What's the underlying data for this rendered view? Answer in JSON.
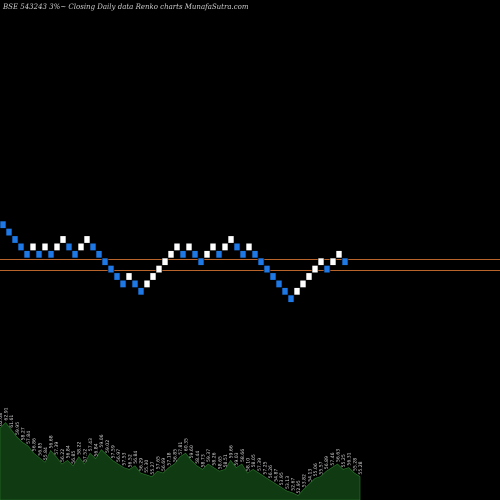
{
  "title": "BSE 543243 3%~ Closing Daily data Renko charts MunafaSutra.com",
  "colors": {
    "background": "#000000",
    "up_brick": "#ffffff",
    "down_brick": "#1e78e6",
    "brick_border": "#0a2a55",
    "reference_line": "#b8642a",
    "volume_area": "#0f3a12",
    "volume_edge": "#2c7a2c",
    "label": "#d8d8d8"
  },
  "chart_data": [
    {
      "type": "renko",
      "title": "BSE 543243 3%~ Closing Daily data Renko charts MunafaSutra.com",
      "brick_size_pct": 3,
      "price_range": [
        40,
        60
      ],
      "reference_lines": [
        52.0,
        50.7
      ],
      "bricks": [
        {
          "level": 62.0,
          "dir": "down"
        },
        {
          "level": 61.0,
          "dir": "down"
        },
        {
          "level": 60.0,
          "dir": "down"
        },
        {
          "level": 59.0,
          "dir": "down"
        },
        {
          "level": 58.0,
          "dir": "down"
        },
        {
          "level": 59.0,
          "dir": "up"
        },
        {
          "level": 58.0,
          "dir": "down"
        },
        {
          "level": 59.0,
          "dir": "up"
        },
        {
          "level": 58.0,
          "dir": "down"
        },
        {
          "level": 59.0,
          "dir": "up"
        },
        {
          "level": 60.0,
          "dir": "up"
        },
        {
          "level": 59.0,
          "dir": "down"
        },
        {
          "level": 58.0,
          "dir": "down"
        },
        {
          "level": 59.0,
          "dir": "up"
        },
        {
          "level": 60.0,
          "dir": "up"
        },
        {
          "level": 59.0,
          "dir": "down"
        },
        {
          "level": 58.0,
          "dir": "down"
        },
        {
          "level": 57.0,
          "dir": "down"
        },
        {
          "level": 56.0,
          "dir": "down"
        },
        {
          "level": 55.0,
          "dir": "down"
        },
        {
          "level": 54.0,
          "dir": "down"
        },
        {
          "level": 55.0,
          "dir": "up"
        },
        {
          "level": 54.0,
          "dir": "down"
        },
        {
          "level": 53.0,
          "dir": "down"
        },
        {
          "level": 54.0,
          "dir": "up"
        },
        {
          "level": 55.0,
          "dir": "up"
        },
        {
          "level": 56.0,
          "dir": "up"
        },
        {
          "level": 57.0,
          "dir": "up"
        },
        {
          "level": 58.0,
          "dir": "up"
        },
        {
          "level": 59.0,
          "dir": "up"
        },
        {
          "level": 58.0,
          "dir": "down"
        },
        {
          "level": 59.0,
          "dir": "up"
        },
        {
          "level": 58.0,
          "dir": "down"
        },
        {
          "level": 57.0,
          "dir": "down"
        },
        {
          "level": 58.0,
          "dir": "up"
        },
        {
          "level": 59.0,
          "dir": "up"
        },
        {
          "level": 58.0,
          "dir": "down"
        },
        {
          "level": 59.0,
          "dir": "up"
        },
        {
          "level": 60.0,
          "dir": "up"
        },
        {
          "level": 59.0,
          "dir": "down"
        },
        {
          "level": 58.0,
          "dir": "down"
        },
        {
          "level": 59.0,
          "dir": "up"
        },
        {
          "level": 58.0,
          "dir": "down"
        },
        {
          "level": 57.0,
          "dir": "down"
        },
        {
          "level": 56.0,
          "dir": "down"
        },
        {
          "level": 55.0,
          "dir": "down"
        },
        {
          "level": 54.0,
          "dir": "down"
        },
        {
          "level": 53.0,
          "dir": "down"
        },
        {
          "level": 52.0,
          "dir": "down"
        },
        {
          "level": 53.0,
          "dir": "up"
        },
        {
          "level": 54.0,
          "dir": "up"
        },
        {
          "level": 55.0,
          "dir": "up"
        },
        {
          "level": 56.0,
          "dir": "up"
        },
        {
          "level": 57.0,
          "dir": "up"
        },
        {
          "level": 56.0,
          "dir": "down"
        },
        {
          "level": 57.0,
          "dir": "up"
        },
        {
          "level": 58.0,
          "dir": "up"
        },
        {
          "level": 57.0,
          "dir": "down"
        }
      ],
      "volume": [
        {
          "value": 80,
          "label": "62.08"
        },
        {
          "value": 86,
          "label": "62.91"
        },
        {
          "value": 78,
          "label": "61.61"
        },
        {
          "value": 70,
          "label": "59.95"
        },
        {
          "value": 64,
          "label": "58.27"
        },
        {
          "value": 60,
          "label": "57.84"
        },
        {
          "value": 52,
          "label": "56.86"
        },
        {
          "value": 47,
          "label": "56.85"
        },
        {
          "value": 42,
          "label": "55.84"
        },
        {
          "value": 55,
          "label": "56.68"
        },
        {
          "value": 48,
          "label": "57.39"
        },
        {
          "value": 40,
          "label": "56.22"
        },
        {
          "value": 44,
          "label": "56.84"
        },
        {
          "value": 38,
          "label": "56.85"
        },
        {
          "value": 48,
          "label": "58.22"
        },
        {
          "value": 40,
          "label": "57.52"
        },
        {
          "value": 52,
          "label": "57.43"
        },
        {
          "value": 46,
          "label": "56.84"
        },
        {
          "value": 56,
          "label": "59.06"
        },
        {
          "value": 50,
          "label": "59.02"
        },
        {
          "value": 44,
          "label": "57.59"
        },
        {
          "value": 40,
          "label": "56.97"
        },
        {
          "value": 36,
          "label": "57.53"
        },
        {
          "value": 34,
          "label": "56.52"
        },
        {
          "value": 38,
          "label": "56.84"
        },
        {
          "value": 30,
          "label": "56.29"
        },
        {
          "value": 28,
          "label": "55.30"
        },
        {
          "value": 26,
          "label": "55.27"
        },
        {
          "value": 32,
          "label": "57.65"
        },
        {
          "value": 30,
          "label": "56.69"
        },
        {
          "value": 36,
          "label": "57.18"
        },
        {
          "value": 40,
          "label": "56.85"
        },
        {
          "value": 48,
          "label": "57.81"
        },
        {
          "value": 52,
          "label": "60.35"
        },
        {
          "value": 44,
          "label": "59.60"
        },
        {
          "value": 38,
          "label": "58.44"
        },
        {
          "value": 34,
          "label": "58.73"
        },
        {
          "value": 40,
          "label": "59.37"
        },
        {
          "value": 36,
          "label": "58.26"
        },
        {
          "value": 32,
          "label": "58.65"
        },
        {
          "value": 34,
          "label": "58.51"
        },
        {
          "value": 44,
          "label": "59.66"
        },
        {
          "value": 36,
          "label": "59.03"
        },
        {
          "value": 40,
          "label": "58.66"
        },
        {
          "value": 30,
          "label": "58.10"
        },
        {
          "value": 34,
          "label": "58.05"
        },
        {
          "value": 30,
          "label": "57.39"
        },
        {
          "value": 26,
          "label": "57.25"
        },
        {
          "value": 22,
          "label": "56.26"
        },
        {
          "value": 18,
          "label": "54.87"
        },
        {
          "value": 14,
          "label": "53.95"
        },
        {
          "value": 10,
          "label": "53.13"
        },
        {
          "value": 8,
          "label": "52.67"
        },
        {
          "value": 5,
          "label": "52.95"
        },
        {
          "value": 12,
          "label": "53.82"
        },
        {
          "value": 18,
          "label": "54.13"
        },
        {
          "value": 24,
          "label": "55.06"
        },
        {
          "value": 26,
          "label": "55.57"
        },
        {
          "value": 32,
          "label": "56.89"
        },
        {
          "value": 36,
          "label": "57.46"
        },
        {
          "value": 40,
          "label": "56.63"
        },
        {
          "value": 34,
          "label": "55.25"
        },
        {
          "value": 36,
          "label": "56.31"
        },
        {
          "value": 30,
          "label": "55.28"
        },
        {
          "value": 26,
          "label": "55.28"
        }
      ]
    }
  ]
}
